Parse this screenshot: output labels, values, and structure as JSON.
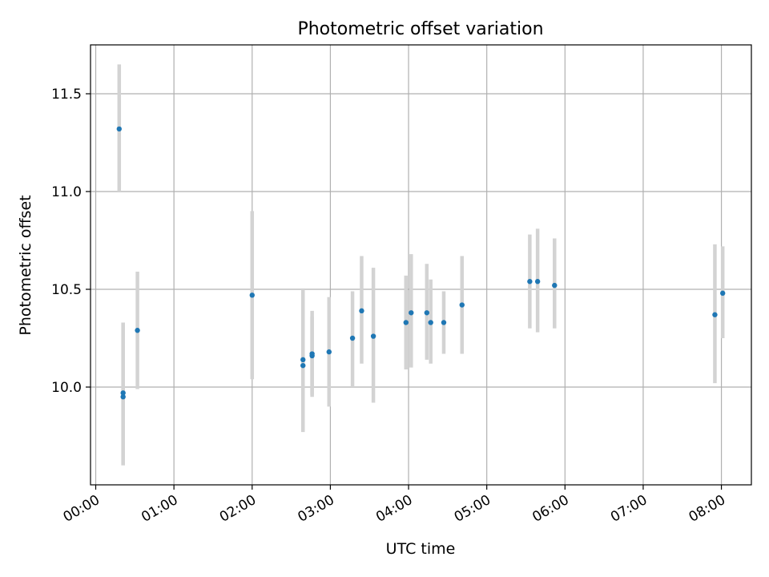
{
  "chart_data": {
    "type": "scatter",
    "title": "Photometric offset variation",
    "xlabel": "UTC time",
    "ylabel": "Photometric offset",
    "x_unit": "hours (UTC)",
    "xlim": [
      "-00:04",
      "08:23"
    ],
    "ylim": [
      9.5,
      11.75
    ],
    "x_ticks": [
      "00:00",
      "01:00",
      "02:00",
      "03:00",
      "04:00",
      "05:00",
      "06:00",
      "07:00",
      "08:00"
    ],
    "y_ticks": [
      "10.0",
      "10.5",
      "11.0",
      "11.5"
    ],
    "grid": true,
    "legend": "none",
    "points": [
      {
        "t": "00:18",
        "y": 11.32,
        "lo": 11.0,
        "hi": 11.65
      },
      {
        "t": "00:21",
        "y": 9.95,
        "lo": 9.6,
        "hi": 10.33
      },
      {
        "t": "00:21",
        "y": 9.97,
        "lo": 9.6,
        "hi": 10.33
      },
      {
        "t": "00:32",
        "y": 10.29,
        "lo": 9.99,
        "hi": 10.59
      },
      {
        "t": "02:00",
        "y": 10.47,
        "lo": 10.04,
        "hi": 10.9
      },
      {
        "t": "02:39",
        "y": 10.11,
        "lo": 9.78,
        "hi": 10.46
      },
      {
        "t": "02:39",
        "y": 10.14,
        "lo": 9.77,
        "hi": 10.5
      },
      {
        "t": "02:46",
        "y": 10.17,
        "lo": 9.95,
        "hi": 10.39
      },
      {
        "t": "02:46",
        "y": 10.16,
        "lo": 9.96,
        "hi": 10.36
      },
      {
        "t": "02:59",
        "y": 10.18,
        "lo": 9.9,
        "hi": 10.46
      },
      {
        "t": "03:17",
        "y": 10.25,
        "lo": 10.0,
        "hi": 10.49
      },
      {
        "t": "03:24",
        "y": 10.39,
        "lo": 10.12,
        "hi": 10.67
      },
      {
        "t": "03:33",
        "y": 10.26,
        "lo": 9.92,
        "hi": 10.61
      },
      {
        "t": "03:58",
        "y": 10.33,
        "lo": 10.09,
        "hi": 10.57
      },
      {
        "t": "04:02",
        "y": 10.38,
        "lo": 10.1,
        "hi": 10.68
      },
      {
        "t": "04:14",
        "y": 10.38,
        "lo": 10.14,
        "hi": 10.63
      },
      {
        "t": "04:17",
        "y": 10.33,
        "lo": 10.12,
        "hi": 10.55
      },
      {
        "t": "04:27",
        "y": 10.33,
        "lo": 10.17,
        "hi": 10.49
      },
      {
        "t": "04:41",
        "y": 10.42,
        "lo": 10.17,
        "hi": 10.67
      },
      {
        "t": "05:33",
        "y": 10.54,
        "lo": 10.3,
        "hi": 10.78
      },
      {
        "t": "05:39",
        "y": 10.54,
        "lo": 10.28,
        "hi": 10.81
      },
      {
        "t": "05:52",
        "y": 10.52,
        "lo": 10.3,
        "hi": 10.76
      },
      {
        "t": "07:55",
        "y": 10.37,
        "lo": 10.02,
        "hi": 10.73
      },
      {
        "t": "08:01",
        "y": 10.48,
        "lo": 10.25,
        "hi": 10.72
      }
    ],
    "colors": {
      "marker": "#1f77b4",
      "errorbar": "#d3d3d3",
      "grid": "#b0b0b0",
      "axes": "#000000"
    }
  }
}
